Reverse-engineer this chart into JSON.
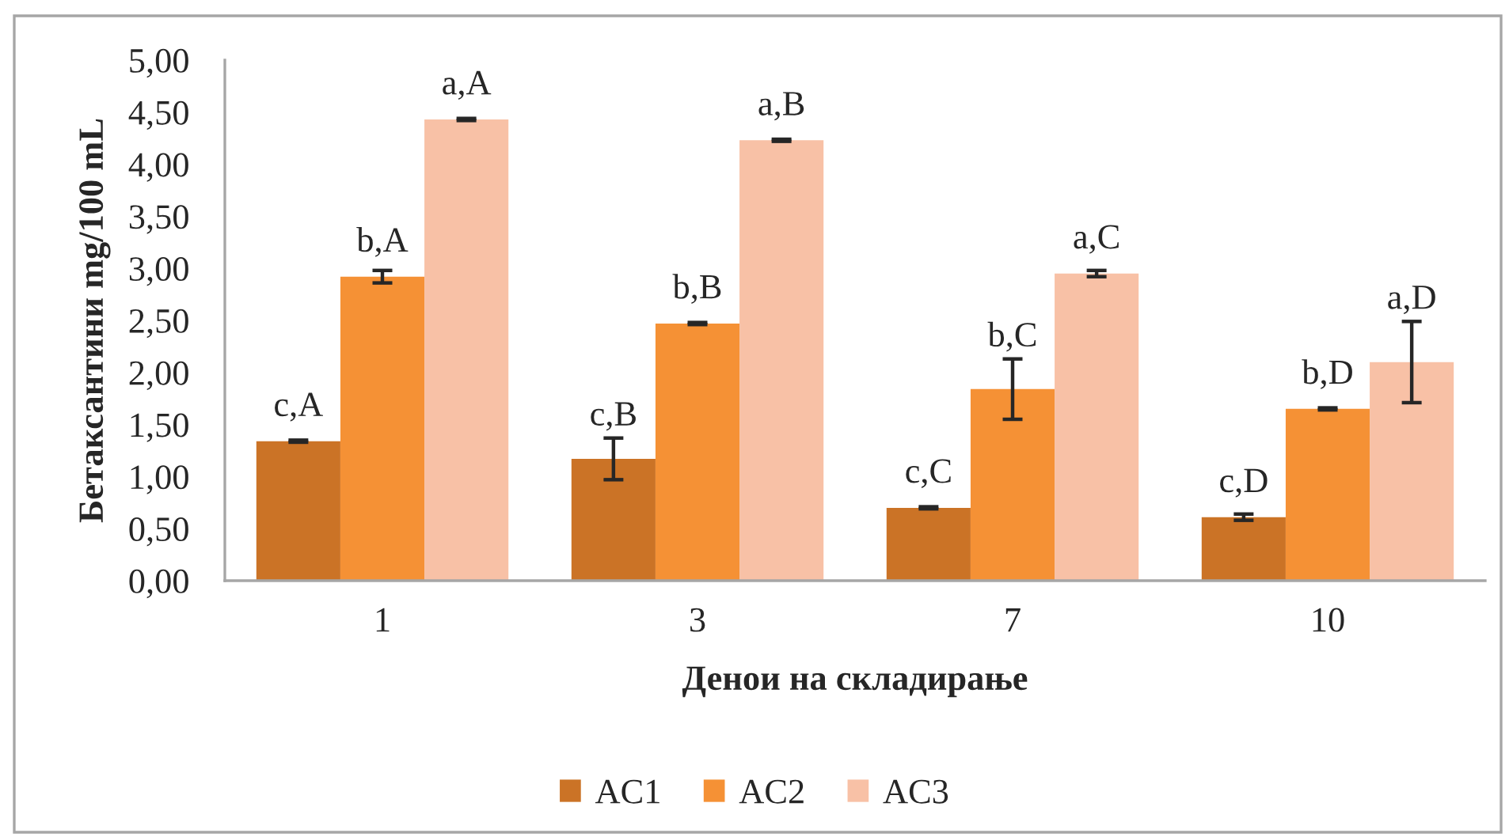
{
  "chart_data": {
    "type": "bar",
    "xlabel": "Денои на складирање",
    "ylabel": "Бетаксантини mg/100 mL",
    "categories": [
      "1",
      "3",
      "7",
      "10"
    ],
    "series": [
      {
        "name": "AC1",
        "color": "#cb7326",
        "values": [
          1.34,
          1.17,
          0.7,
          0.61
        ],
        "errors": [
          0.01,
          0.2,
          0.01,
          0.03
        ],
        "value_labels": [
          "c,A",
          "c,B",
          "c,C",
          "c,D"
        ]
      },
      {
        "name": "AC2",
        "color": "#f59135",
        "values": [
          2.92,
          2.47,
          1.84,
          1.65
        ],
        "errors": [
          0.06,
          0.01,
          0.29,
          0.01
        ],
        "value_labels": [
          "b,A",
          "b,B",
          "b,C",
          "b,D"
        ]
      },
      {
        "name": "AC3",
        "color": "#f8c1a6",
        "values": [
          4.43,
          4.23,
          2.95,
          2.1
        ],
        "errors": [
          0.01,
          0.01,
          0.03,
          0.39
        ],
        "value_labels": [
          "a,A",
          "a,B",
          "a,C",
          "a,D"
        ]
      }
    ],
    "ylim": [
      0,
      5
    ],
    "yticks": [
      {
        "value": 0,
        "label": "0,00"
      },
      {
        "value": 0.5,
        "label": "0,50"
      },
      {
        "value": 1,
        "label": "1,00"
      },
      {
        "value": 1.5,
        "label": "1,50"
      },
      {
        "value": 2,
        "label": "2,00"
      },
      {
        "value": 2.5,
        "label": "2,50"
      },
      {
        "value": 3,
        "label": "3,00"
      },
      {
        "value": 3.5,
        "label": "3,50"
      },
      {
        "value": 4,
        "label": "4,00"
      },
      {
        "value": 4.5,
        "label": "4,50"
      },
      {
        "value": 5,
        "label": "5,00"
      }
    ],
    "grid": false,
    "legend": "bottom"
  }
}
